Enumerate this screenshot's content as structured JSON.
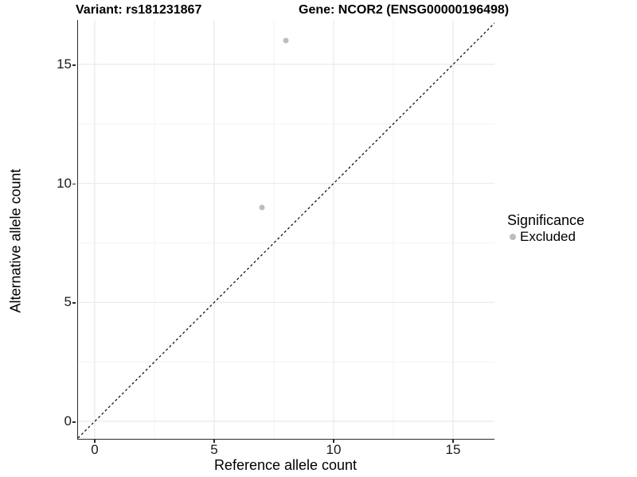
{
  "title_left": "Variant: rs181231867",
  "title_right": "Gene: NCOR2 (ENSG00000196498)",
  "chart_data": {
    "type": "scatter",
    "title": "Variant: rs181231867   Gene: NCOR2 (ENSG00000196498)",
    "xlabel": "Reference allele count",
    "ylabel": "Alternative allele count",
    "xlim": [
      -0.7,
      16.75
    ],
    "ylim": [
      -0.75,
      16.9
    ],
    "x_ticks": [
      0,
      5,
      10,
      15
    ],
    "y_ticks": [
      0,
      5,
      10,
      15
    ],
    "grid": "major and minor, light gray, on white background",
    "legend_position": "right",
    "identity_line": {
      "equation": "y = x",
      "style": "dashed",
      "color": "#000000"
    },
    "series": [
      {
        "name": "Excluded",
        "color": "#bdbdbd",
        "points": [
          {
            "x": 8,
            "y": 16
          },
          {
            "x": 7,
            "y": 9
          }
        ]
      }
    ]
  },
  "legend": {
    "title": "Significance",
    "items": [
      {
        "label": "Excluded",
        "color": "#bdbdbd"
      }
    ]
  },
  "colors": {
    "point": "#bdbdbd",
    "grid_major": "#e9e9e9",
    "grid_minor": "#f3f3f3",
    "axis_line": "#2b2b2b",
    "identity_line": "#000000",
    "background": "#ffffff"
  }
}
